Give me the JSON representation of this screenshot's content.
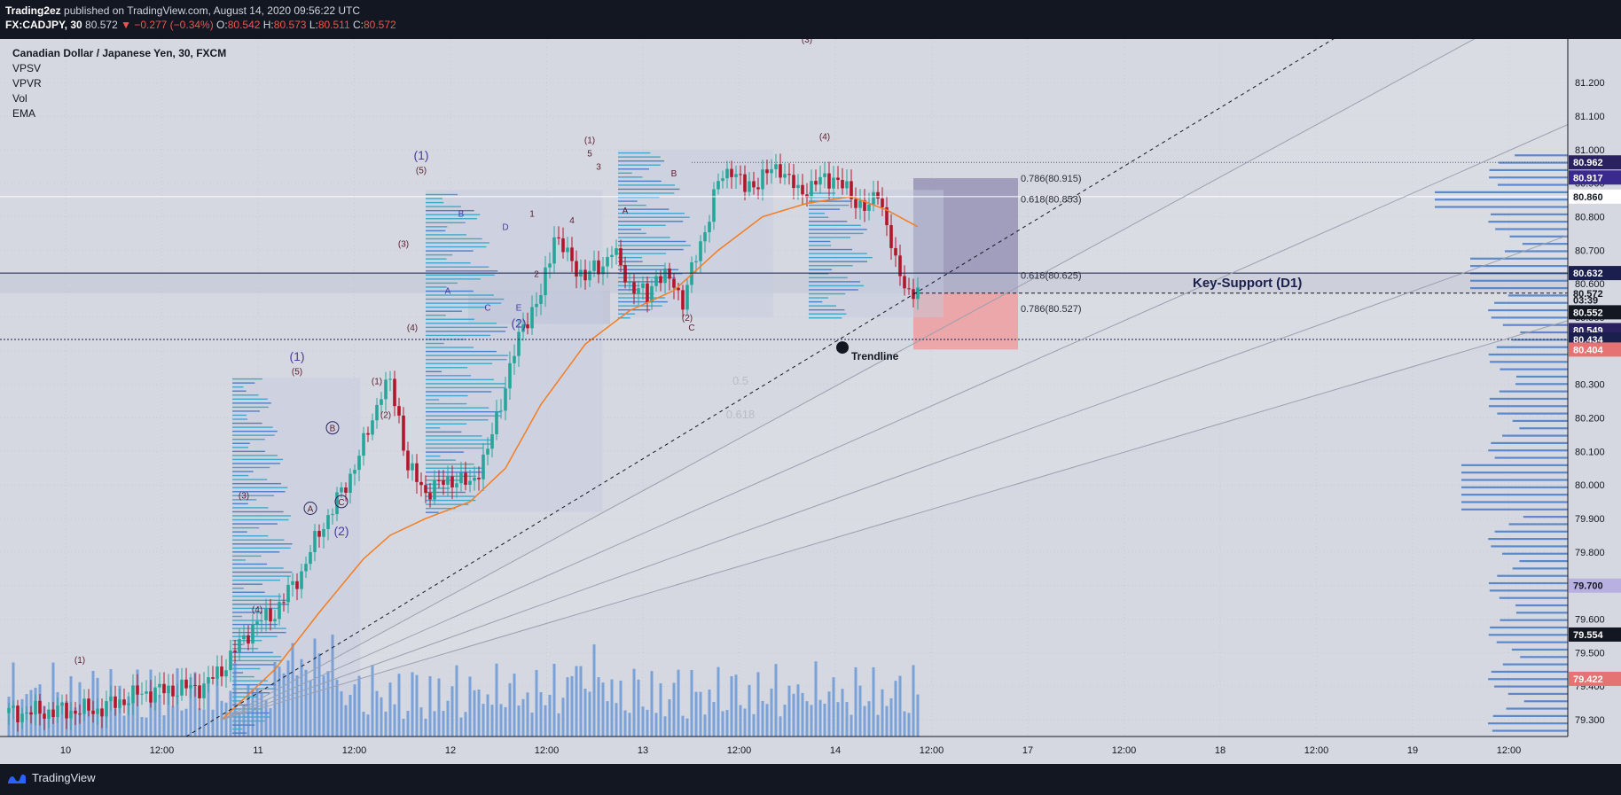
{
  "header": {
    "publisher": "Trading2ez",
    "published_text": "published on TradingView.com, August 14, 2020 09:56:22 UTC",
    "symbol": "FX:CADJPY, 30",
    "last": "80.572",
    "change": "▼ −0.277 (−0.34%)",
    "o_label": "O:",
    "o": "80.542",
    "h_label": "H:",
    "h": "80.573",
    "l_label": "L:",
    "l": "80.511",
    "c_label": "C:",
    "c": "80.572"
  },
  "legend": {
    "title": "Canadian Dollar / Japanese Yen, 30, FXCM",
    "indicators": [
      "VPSV",
      "VPVR",
      "Vol",
      "EMA"
    ]
  },
  "footer": {
    "brand": "TradingView"
  },
  "colors": {
    "background": "#d5d8e0",
    "up": "#26a69a",
    "down": "#b2162a",
    "ema": "#f57c1f",
    "volume": "#5b8fd6",
    "wave_labels": "#5a1d2e",
    "wave_labels_alt": "#4a3aa8",
    "key_support": "#1a1f4d",
    "target_zone": "#8f8ab0",
    "stop_zone": "#ef9a9a"
  },
  "chart_data": {
    "type": "candlestick",
    "title": "Canadian Dollar / Japanese Yen, 30, FXCM",
    "x_ticks": [
      "10",
      "12:00",
      "11",
      "12:00",
      "12",
      "12:00",
      "13",
      "12:00",
      "14",
      "12:00",
      "17",
      "12:00",
      "18",
      "12:00",
      "19",
      "12:00"
    ],
    "y_ticks": [
      "81.200",
      "81.100",
      "81.000",
      "80.900",
      "80.800",
      "80.700",
      "80.600",
      "80.500",
      "80.400",
      "80.300",
      "80.200",
      "80.100",
      "80.000",
      "79.900",
      "79.800",
      "79.700",
      "79.600",
      "79.500",
      "79.400",
      "79.300"
    ],
    "ylim": [
      79.25,
      81.33
    ],
    "price_path": [
      [
        0,
        79.32
      ],
      [
        20,
        79.33
      ],
      [
        30,
        79.38
      ],
      [
        44,
        79.4
      ],
      [
        48,
        79.45
      ],
      [
        55,
        79.58
      ],
      [
        60,
        79.62
      ],
      [
        66,
        79.74
      ],
      [
        70,
        79.86
      ],
      [
        76,
        80.0
      ],
      [
        80,
        80.12
      ],
      [
        84,
        80.28
      ],
      [
        86,
        80.3
      ],
      [
        88,
        80.2
      ],
      [
        90,
        80.05
      ],
      [
        94,
        79.98
      ],
      [
        100,
        80.02
      ],
      [
        104,
        80.0
      ],
      [
        108,
        80.1
      ],
      [
        112,
        80.3
      ],
      [
        116,
        80.48
      ],
      [
        120,
        80.56
      ],
      [
        123,
        80.75
      ],
      [
        126,
        80.68
      ],
      [
        130,
        80.62
      ],
      [
        134,
        80.66
      ],
      [
        136,
        80.7
      ],
      [
        140,
        80.6
      ],
      [
        144,
        80.56
      ],
      [
        146,
        80.63
      ],
      [
        150,
        80.6
      ],
      [
        152,
        80.55
      ],
      [
        156,
        80.72
      ],
      [
        160,
        80.9
      ],
      [
        163,
        80.95
      ],
      [
        166,
        80.88
      ],
      [
        170,
        80.92
      ],
      [
        174,
        80.95
      ],
      [
        178,
        80.87
      ],
      [
        182,
        80.9
      ],
      [
        186,
        80.92
      ],
      [
        190,
        80.86
      ],
      [
        194,
        80.82
      ],
      [
        196,
        80.88
      ],
      [
        198,
        80.78
      ],
      [
        200,
        80.65
      ],
      [
        203,
        80.58
      ],
      [
        205,
        80.572
      ]
    ],
    "ema_path": [
      [
        48,
        79.3
      ],
      [
        60,
        79.45
      ],
      [
        70,
        79.62
      ],
      [
        80,
        79.78
      ],
      [
        86,
        79.85
      ],
      [
        94,
        79.9
      ],
      [
        104,
        79.95
      ],
      [
        112,
        80.05
      ],
      [
        120,
        80.24
      ],
      [
        130,
        80.42
      ],
      [
        140,
        80.52
      ],
      [
        150,
        80.58
      ],
      [
        160,
        80.7
      ],
      [
        170,
        80.8
      ],
      [
        180,
        80.84
      ],
      [
        190,
        80.86
      ],
      [
        198,
        80.82
      ],
      [
        205,
        80.77
      ]
    ],
    "price_labels": [
      {
        "value": "80.962",
        "price": 80.962,
        "bg": "#2a2260",
        "fg": "#ffffff"
      },
      {
        "value": "80.917",
        "price": 80.917,
        "bg": "#3b2a8e",
        "fg": "#ffffff"
      },
      {
        "value": "80.860",
        "price": 80.86,
        "bg": "#ffffff",
        "fg": "#131722"
      },
      {
        "value": "80.632",
        "price": 80.632,
        "bg": "#1a1f4d",
        "fg": "#ffffff"
      },
      {
        "value": "80.572",
        "price": 80.572,
        "bg": "none",
        "fg": "#131722"
      },
      {
        "value": "03:39",
        "price": 80.552,
        "bg": "none",
        "fg": "#131722"
      },
      {
        "value": "80.552",
        "price": 80.515,
        "bg": "#131722",
        "fg": "#ffffff"
      },
      {
        "value": "80.549",
        "price": 80.462,
        "bg": "#2a2260",
        "fg": "#ffffff"
      },
      {
        "value": "80.434",
        "price": 80.434,
        "bg": "#1a1f4d",
        "fg": "#ffffff"
      },
      {
        "value": "80.404",
        "price": 80.404,
        "bg": "#e57373",
        "fg": "#ffffff"
      },
      {
        "value": "79.700",
        "price": 79.7,
        "bg": "#b8b0e0",
        "fg": "#131722"
      },
      {
        "value": "79.554",
        "price": 79.554,
        "bg": "#131722",
        "fg": "#ffffff"
      },
      {
        "value": "79.422",
        "price": 79.422,
        "bg": "#e57373",
        "fg": "#ffffff"
      }
    ],
    "fib_labels": [
      {
        "text": "0.786(80.915)",
        "price": 80.915
      },
      {
        "text": "0.618(80.853)",
        "price": 80.853
      },
      {
        "text": "0.618(80.625)",
        "price": 80.625
      },
      {
        "text": "0.786(80.527)",
        "price": 80.527
      },
      {
        "text": "0.5",
        "price": 80.31
      },
      {
        "text": "0.618",
        "price": 80.21
      }
    ],
    "annotations": {
      "key_support": "Key-Support (D1)",
      "trendline": "Trendline"
    },
    "wave_labels": [
      {
        "text": "(1)",
        "bar": 16,
        "price": 79.47
      },
      {
        "text": "(4)",
        "bar": 56,
        "price": 79.62
      },
      {
        "text": "(3)",
        "bar": 53,
        "price": 79.96
      },
      {
        "text": "(1)",
        "bar": 65,
        "price": 80.37,
        "alt": true,
        "big": true
      },
      {
        "text": "(5)",
        "bar": 65,
        "price": 80.33
      },
      {
        "text": "B",
        "bar": 73,
        "price": 80.16,
        "circle": true
      },
      {
        "text": "A",
        "bar": 68,
        "price": 79.92,
        "circle": true
      },
      {
        "text": "C",
        "bar": 75,
        "price": 79.94,
        "circle": true
      },
      {
        "text": "(2)",
        "bar": 75,
        "price": 79.85,
        "alt": true,
        "big": true
      },
      {
        "text": "(1)",
        "bar": 83,
        "price": 80.3
      },
      {
        "text": "(2)",
        "bar": 85,
        "price": 80.2
      },
      {
        "text": "(4)",
        "bar": 91,
        "price": 80.46
      },
      {
        "text": "(3)",
        "bar": 89,
        "price": 80.71
      },
      {
        "text": "(1)",
        "bar": 93,
        "price": 80.97,
        "alt": true,
        "big": true
      },
      {
        "text": "(5)",
        "bar": 93,
        "price": 80.93
      },
      {
        "text": "A",
        "bar": 99,
        "price": 80.57,
        "alt": true
      },
      {
        "text": "B",
        "bar": 102,
        "price": 80.8,
        "alt": true
      },
      {
        "text": "C",
        "bar": 108,
        "price": 80.52,
        "alt": true
      },
      {
        "text": "D",
        "bar": 112,
        "price": 80.76,
        "alt": true
      },
      {
        "text": "E",
        "bar": 115,
        "price": 80.52,
        "alt": true
      },
      {
        "text": "(2)",
        "bar": 115,
        "price": 80.47,
        "alt": true,
        "big": true
      },
      {
        "text": "1",
        "bar": 118,
        "price": 80.8
      },
      {
        "text": "2",
        "bar": 119,
        "price": 80.62
      },
      {
        "text": "4",
        "bar": 127,
        "price": 80.78
      },
      {
        "text": "(1)",
        "bar": 131,
        "price": 81.02
      },
      {
        "text": "5",
        "bar": 131,
        "price": 80.98
      },
      {
        "text": "3",
        "bar": 133,
        "price": 80.94
      },
      {
        "text": "A",
        "bar": 139,
        "price": 80.81
      },
      {
        "text": "B",
        "bar": 150,
        "price": 80.92
      },
      {
        "text": "(2)",
        "bar": 153,
        "price": 80.49
      },
      {
        "text": "C",
        "bar": 154,
        "price": 80.46
      },
      {
        "text": "(4)",
        "bar": 184,
        "price": 81.03
      },
      {
        "text": "(3)",
        "bar": 180,
        "price": 81.32
      }
    ]
  }
}
